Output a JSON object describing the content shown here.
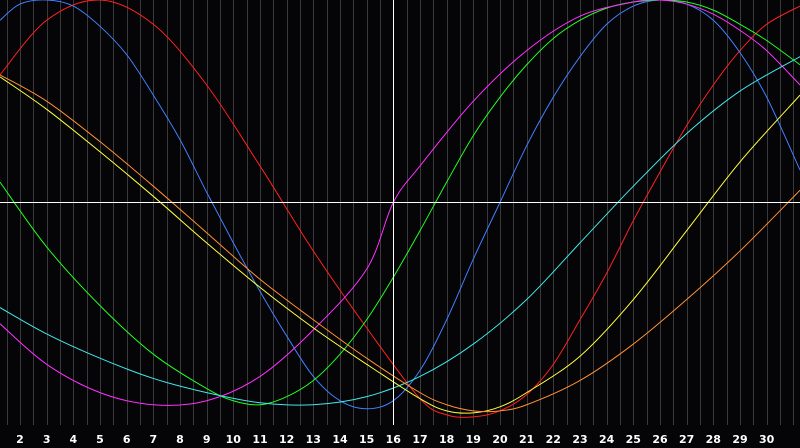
{
  "chart_data": {
    "type": "line",
    "title": "",
    "xlabel": "",
    "ylabel": "",
    "xlim": [
      1.25,
      31.25
    ],
    "ylim": [
      -1.1,
      1.0
    ],
    "grid": true,
    "legend": "none",
    "x_ticks": [
      "2",
      "3",
      "4",
      "5",
      "6",
      "7",
      "8",
      "9",
      "10",
      "11",
      "12",
      "13",
      "14",
      "15",
      "16",
      "17",
      "18",
      "19",
      "20",
      "21",
      "22",
      "23",
      "24",
      "25",
      "26",
      "27",
      "28",
      "29",
      "30"
    ],
    "crosshair": {
      "x": 16,
      "y": 0
    },
    "colors": {
      "background": "#050407",
      "grid": "#3a3a3a",
      "crosshair": "#ffffff",
      "tick_label": "#ffffff"
    },
    "series": [
      {
        "color": "#ff2020",
        "points": [
          [
            1.25,
            0.63
          ],
          [
            3,
            0.9
          ],
          [
            5,
            1.0
          ],
          [
            7,
            0.88
          ],
          [
            9,
            0.58
          ],
          [
            11,
            0.18
          ],
          [
            13,
            -0.24
          ],
          [
            15,
            -0.62
          ],
          [
            17,
            -0.97
          ],
          [
            18,
            -1.05
          ],
          [
            19,
            -1.06
          ],
          [
            20,
            -1.03
          ],
          [
            21,
            -0.95
          ],
          [
            22,
            -0.8
          ],
          [
            23,
            -0.58
          ],
          [
            24,
            -0.35
          ],
          [
            25,
            -0.09
          ],
          [
            26,
            0.15
          ],
          [
            27,
            0.38
          ],
          [
            28,
            0.58
          ],
          [
            29,
            0.75
          ],
          [
            30,
            0.88
          ],
          [
            31.25,
            0.97
          ]
        ]
      },
      {
        "color": "#4080ff",
        "points": [
          [
            1.25,
            0.9
          ],
          [
            2,
            0.98
          ],
          [
            3,
            1.0
          ],
          [
            4,
            0.97
          ],
          [
            5,
            0.87
          ],
          [
            6,
            0.73
          ],
          [
            7,
            0.53
          ],
          [
            8,
            0.31
          ],
          [
            9,
            0.05
          ],
          [
            10,
            -0.2
          ],
          [
            11,
            -0.44
          ],
          [
            12,
            -0.66
          ],
          [
            13,
            -0.86
          ],
          [
            14,
            -0.98
          ],
          [
            15,
            -1.02
          ],
          [
            16,
            -0.98
          ],
          [
            17,
            -0.83
          ],
          [
            18,
            -0.58
          ],
          [
            19,
            -0.28
          ],
          [
            20,
            0.0
          ],
          [
            21,
            0.28
          ],
          [
            22,
            0.52
          ],
          [
            23,
            0.72
          ],
          [
            24,
            0.88
          ],
          [
            25,
            0.97
          ],
          [
            26,
            1.0
          ],
          [
            27,
            0.98
          ],
          [
            28,
            0.9
          ],
          [
            29,
            0.74
          ],
          [
            30,
            0.52
          ],
          [
            31.25,
            0.16
          ]
        ]
      },
      {
        "color": "#20ff20",
        "points": [
          [
            1.25,
            0.1
          ],
          [
            3,
            -0.22
          ],
          [
            5,
            -0.51
          ],
          [
            7,
            -0.75
          ],
          [
            9,
            -0.92
          ],
          [
            10,
            -0.98
          ],
          [
            11,
            -1.0
          ],
          [
            12,
            -0.96
          ],
          [
            13,
            -0.88
          ],
          [
            14,
            -0.75
          ],
          [
            15,
            -0.58
          ],
          [
            16,
            -0.37
          ],
          [
            17,
            -0.14
          ],
          [
            18,
            0.1
          ],
          [
            19,
            0.33
          ],
          [
            20,
            0.52
          ],
          [
            21,
            0.68
          ],
          [
            22,
            0.81
          ],
          [
            23,
            0.9
          ],
          [
            24,
            0.96
          ],
          [
            25,
            0.99
          ],
          [
            26,
            1.0
          ],
          [
            27,
            0.99
          ],
          [
            28,
            0.95
          ],
          [
            29,
            0.88
          ],
          [
            30,
            0.8
          ],
          [
            31.25,
            0.68
          ]
        ]
      },
      {
        "color": "#ff30ff",
        "points": [
          [
            1.25,
            -0.6
          ],
          [
            3,
            -0.8
          ],
          [
            5,
            -0.94
          ],
          [
            7,
            -1.0
          ],
          [
            9,
            -0.98
          ],
          [
            11,
            -0.86
          ],
          [
            13,
            -0.63
          ],
          [
            15,
            -0.33
          ],
          [
            16,
            0.0
          ],
          [
            17,
            0.18
          ],
          [
            19,
            0.5
          ],
          [
            21,
            0.75
          ],
          [
            23,
            0.92
          ],
          [
            25,
            0.99
          ],
          [
            26,
            1.0
          ],
          [
            27,
            0.98
          ],
          [
            28,
            0.93
          ],
          [
            29,
            0.85
          ],
          [
            30,
            0.75
          ],
          [
            31.25,
            0.58
          ]
        ]
      },
      {
        "color": "#40e8e8",
        "points": [
          [
            1.25,
            -0.52
          ],
          [
            3,
            -0.65
          ],
          [
            5,
            -0.77
          ],
          [
            7,
            -0.87
          ],
          [
            9,
            -0.94
          ],
          [
            11,
            -0.99
          ],
          [
            13,
            -1.0
          ],
          [
            15,
            -0.96
          ],
          [
            17,
            -0.86
          ],
          [
            19,
            -0.7
          ],
          [
            21,
            -0.48
          ],
          [
            23,
            -0.2
          ],
          [
            25,
            0.08
          ],
          [
            27,
            0.34
          ],
          [
            29,
            0.55
          ],
          [
            31.25,
            0.72
          ]
        ]
      },
      {
        "color": "#ffff40",
        "points": [
          [
            1.25,
            0.62
          ],
          [
            3,
            0.46
          ],
          [
            5,
            0.25
          ],
          [
            7,
            0.03
          ],
          [
            9,
            -0.2
          ],
          [
            11,
            -0.42
          ],
          [
            13,
            -0.62
          ],
          [
            15,
            -0.8
          ],
          [
            17,
            -0.97
          ],
          [
            18,
            -1.03
          ],
          [
            19,
            -1.04
          ],
          [
            20,
            -1.01
          ],
          [
            21,
            -0.94
          ],
          [
            23,
            -0.76
          ],
          [
            25,
            -0.48
          ],
          [
            27,
            -0.14
          ],
          [
            29,
            0.2
          ],
          [
            31.25,
            0.53
          ]
        ]
      },
      {
        "color": "#ff9030",
        "points": [
          [
            1.25,
            0.63
          ],
          [
            3,
            0.5
          ],
          [
            5,
            0.3
          ],
          [
            7,
            0.08
          ],
          [
            9,
            -0.15
          ],
          [
            11,
            -0.38
          ],
          [
            13,
            -0.58
          ],
          [
            15,
            -0.77
          ],
          [
            17,
            -0.94
          ],
          [
            18,
            -1.0
          ],
          [
            19,
            -1.03
          ],
          [
            20,
            -1.03
          ],
          [
            21,
            -1.0
          ],
          [
            23,
            -0.88
          ],
          [
            25,
            -0.7
          ],
          [
            27,
            -0.48
          ],
          [
            29,
            -0.24
          ],
          [
            31.25,
            0.06
          ]
        ]
      }
    ]
  }
}
